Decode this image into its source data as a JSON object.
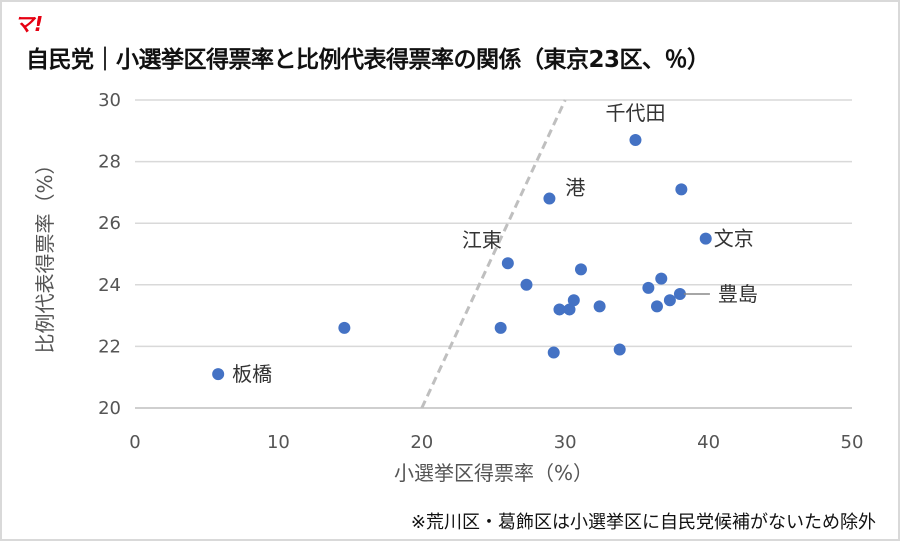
{
  "logo": "マ!",
  "title": "自民党｜小選挙区得票率と比例代表得票率の関係（東京23区、％）",
  "note": "※荒川区・葛飾区は小選挙区に自民党候補がないため除外",
  "chart_data": {
    "type": "scatter",
    "title": "自民党｜小選挙区得票率と比例代表得票率の関係（東京23区、％）",
    "xlabel": "小選挙区得票率（%）",
    "ylabel": "比例代表得票率（%）",
    "xlim": [
      0,
      50
    ],
    "ylim": [
      20,
      30
    ],
    "xticks": [
      0,
      10,
      20,
      30,
      40,
      50
    ],
    "yticks": [
      20,
      22,
      24,
      26,
      28,
      30
    ],
    "grid": "horizontal",
    "color": "#4472c4",
    "reference_line": {
      "from": [
        20,
        20
      ],
      "to": [
        30,
        30
      ],
      "style": "dashed",
      "color": "#bfbfbf"
    },
    "points": [
      {
        "x": 5.8,
        "y": 21.1,
        "label": "板橋"
      },
      {
        "x": 14.6,
        "y": 22.6
      },
      {
        "x": 25.5,
        "y": 22.6
      },
      {
        "x": 26.0,
        "y": 24.7,
        "label": "江東"
      },
      {
        "x": 27.3,
        "y": 24.0
      },
      {
        "x": 28.9,
        "y": 26.8,
        "label": "港"
      },
      {
        "x": 29.2,
        "y": 21.8
      },
      {
        "x": 29.6,
        "y": 23.2
      },
      {
        "x": 30.3,
        "y": 23.2
      },
      {
        "x": 30.6,
        "y": 23.5
      },
      {
        "x": 31.1,
        "y": 24.5
      },
      {
        "x": 32.4,
        "y": 23.3
      },
      {
        "x": 33.8,
        "y": 21.9
      },
      {
        "x": 34.9,
        "y": 28.7,
        "label": "千代田"
      },
      {
        "x": 35.8,
        "y": 23.9
      },
      {
        "x": 36.4,
        "y": 23.3
      },
      {
        "x": 36.7,
        "y": 24.2
      },
      {
        "x": 37.3,
        "y": 23.5
      },
      {
        "x": 38.0,
        "y": 23.7,
        "label": "豊島"
      },
      {
        "x": 38.1,
        "y": 27.1
      },
      {
        "x": 39.8,
        "y": 25.5,
        "label": "文京"
      }
    ]
  }
}
